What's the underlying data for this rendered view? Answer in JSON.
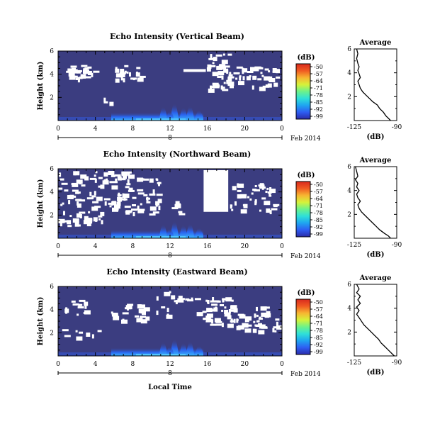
{
  "figure": {
    "xlabel": "Local Time",
    "date_label": "Feb 2014",
    "day_label": "8",
    "colorbar_unit": "(dB)",
    "colorbar_ticks": [
      "-50",
      "-57",
      "-64",
      "-71",
      "-78",
      "-85",
      "-92",
      "-99"
    ],
    "colors": {
      "background": "#3b3d80",
      "white_gap": "#ffffff",
      "cmap": [
        "#2b2ba8",
        "#2e5df2",
        "#1fa5f0",
        "#2fe0d8",
        "#6cf28a",
        "#d6f23a",
        "#f7b531",
        "#f05a22",
        "#d92a1e"
      ]
    }
  },
  "chart_data": [
    {
      "type": "heatmap",
      "title": "Echo Intensity (Vertical Beam)",
      "ylabel": "Height (km)",
      "x_ticks": [
        "0",
        "4",
        "8",
        "12",
        "16",
        "20",
        "0"
      ],
      "y_ticks": [
        "2",
        "4",
        "6"
      ],
      "xlim": [
        0,
        24
      ],
      "ylim": [
        0,
        6
      ],
      "clim": [
        -99,
        -50
      ],
      "profile": {
        "title": "Average",
        "xlabel": "(dB)",
        "x_ticks": [
          "-125",
          "-90"
        ],
        "y_ticks": [
          "2",
          "4",
          "6"
        ],
        "xlim": [
          -125,
          -90
        ],
        "ylim": [
          0,
          6
        ],
        "x": [
          -123,
          -122,
          -123,
          -122,
          -121,
          -122,
          -121,
          -120,
          -122,
          -121,
          -120,
          -118,
          -115,
          -112,
          -110,
          -106,
          -104,
          -101,
          -99,
          -97,
          -95
        ],
        "y": [
          6.0,
          5.6,
          5.2,
          4.8,
          4.5,
          4.2,
          3.9,
          3.6,
          3.3,
          3.0,
          2.7,
          2.4,
          2.1,
          1.8,
          1.6,
          1.3,
          1.0,
          0.7,
          0.4,
          0.2,
          0.0
        ]
      }
    },
    {
      "type": "heatmap",
      "title": "Echo Intensity (Northward Beam)",
      "ylabel": "Height (km)",
      "x_ticks": [
        "0",
        "4",
        "8",
        "12",
        "16",
        "20",
        "0"
      ],
      "y_ticks": [
        "2",
        "4",
        "6"
      ],
      "xlim": [
        0,
        24
      ],
      "ylim": [
        0,
        6
      ],
      "clim": [
        -99,
        -50
      ],
      "profile": {
        "title": "Average",
        "xlabel": "(dB)",
        "x_ticks": [
          "-125",
          "-90"
        ],
        "y_ticks": [
          "2",
          "4",
          "6"
        ],
        "xlim": [
          -125,
          -90
        ],
        "ylim": [
          0,
          6
        ],
        "x": [
          -124,
          -123,
          -122,
          -124,
          -122,
          -123,
          -121,
          -123,
          -122,
          -120,
          -122,
          -121,
          -119,
          -116,
          -113,
          -110,
          -107,
          -104,
          -100,
          -97,
          -95
        ],
        "y": [
          6.0,
          5.6,
          5.2,
          4.9,
          4.6,
          4.3,
          4.0,
          3.7,
          3.4,
          3.1,
          2.8,
          2.5,
          2.2,
          1.9,
          1.6,
          1.3,
          1.0,
          0.7,
          0.4,
          0.2,
          0.0
        ]
      }
    },
    {
      "type": "heatmap",
      "title": "Echo Intensity (Eastward Beam)",
      "ylabel": "Height (km)",
      "x_ticks": [
        "0",
        "4",
        "8",
        "12",
        "16",
        "20",
        "0"
      ],
      "y_ticks": [
        "2",
        "4",
        "6"
      ],
      "xlim": [
        0,
        24
      ],
      "ylim": [
        0,
        6
      ],
      "clim": [
        -99,
        -50
      ],
      "profile": {
        "title": "Average",
        "xlabel": "(dB)",
        "x_ticks": [
          "-125",
          "-90"
        ],
        "y_ticks": [
          "2",
          "4",
          "6"
        ],
        "xlim": [
          -125,
          -90
        ],
        "ylim": [
          0,
          6
        ],
        "x": [
          -123,
          -121,
          -123,
          -120,
          -122,
          -120,
          -123,
          -121,
          -123,
          -121,
          -119,
          -117,
          -114,
          -111,
          -108,
          -105,
          -103,
          -100,
          -97,
          -94,
          -92
        ],
        "y": [
          6.0,
          5.6,
          5.3,
          5.0,
          4.7,
          4.4,
          4.1,
          3.8,
          3.5,
          3.2,
          2.9,
          2.6,
          2.3,
          2.0,
          1.7,
          1.4,
          1.1,
          0.8,
          0.5,
          0.2,
          0.0
        ]
      }
    }
  ]
}
